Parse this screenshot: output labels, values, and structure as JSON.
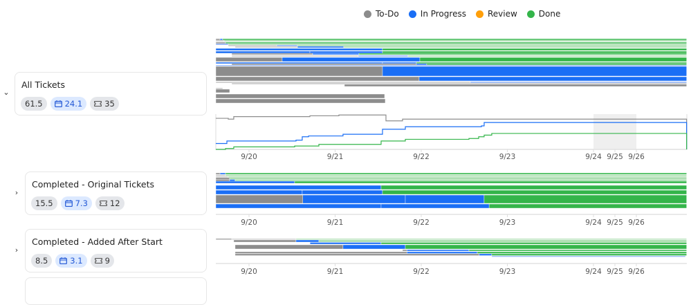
{
  "legend": [
    {
      "label": "To-Do",
      "color": "#8c8c8c"
    },
    {
      "label": "In Progress",
      "color": "#1a6ef5"
    },
    {
      "label": "Review",
      "color": "#ff9f0a"
    },
    {
      "label": "Done",
      "color": "#34b54a"
    }
  ],
  "colors": {
    "todo": "#8c8c8c",
    "todo-light": "#c6c6c6",
    "prog": "#1a6ef5",
    "prog-light": "#86acf3",
    "done": "#34b54a",
    "done-light": "#a3dba8",
    "weekend": "#efefef"
  },
  "groups": [
    {
      "title": "All Tickets",
      "expanded": true,
      "points": "61.5",
      "days": "24.1",
      "tickets": "35",
      "chevron": "chevron-down-icon"
    },
    {
      "title": "Completed - Original Tickets",
      "expanded": false,
      "points": "15.5",
      "days": "7.3",
      "tickets": "12",
      "chevron": "chevron-right-icon"
    },
    {
      "title": "Completed - Added After Start",
      "expanded": false,
      "points": "8.5",
      "days": "3.1",
      "tickets": "9",
      "chevron": "chevron-right-icon"
    }
  ],
  "chart_data": [
    {
      "type": "timeline",
      "group": "All Tickets",
      "xlim": [
        "9/19 14:45",
        "9/26 14:00"
      ],
      "ticks": [
        "9/20",
        "9/21",
        "9/22",
        "9/23",
        "9/24",
        "9/25",
        "9/26"
      ],
      "rows": [
        [
          [
            "todo",
            "9/19 14:45",
            "9/19 15:55"
          ],
          [
            "prog",
            "9/19 15:55",
            "9/19 16:40"
          ],
          [
            "done",
            "9/19 16:40",
            "9/26 14:00"
          ]
        ],
        [
          [
            "todo-light",
            "9/19 14:45",
            "9/19 17:03"
          ],
          [
            "done-light",
            "9/19 17:03",
            "9/26 14:00"
          ]
        ],
        [
          [
            "todo",
            "9/19 14:45",
            "9/19 17:27"
          ],
          [
            "done",
            "9/19 17:27",
            "9/26 14:00"
          ]
        ],
        [
          [
            "prog-light",
            "9/19 14:45",
            "9/19 18:13"
          ],
          [
            "done-light",
            "9/19 18:13",
            "9/26 14:00"
          ]
        ],
        [
          [
            "todo-light",
            "9/19 18:13",
            "9/20 07:43"
          ],
          [
            "prog-light",
            "9/20 07:43",
            "9/20 13:30"
          ],
          [
            "done-light",
            "9/20 13:30",
            "9/26 14:00"
          ]
        ],
        [
          [
            "todo-light",
            "9/19 20:08",
            "9/20 13:30"
          ],
          [
            "prog",
            "9/20 13:30",
            "9/21 02:24"
          ],
          [
            "done-light",
            "9/21 02:24",
            "9/26 14:00"
          ]
        ],
        [
          [
            "prog",
            "9/19 14:45",
            "9/21 13:12"
          ],
          [
            "done",
            "9/21 13:12",
            "9/26 14:00"
          ]
        ],
        [
          [
            "prog",
            "9/19 14:45",
            "9/20 16:58"
          ],
          [
            "prog",
            "9/20 16:58",
            "9/21 13:12"
          ],
          [
            "done",
            "9/21 13:12",
            "9/26 14:00"
          ]
        ],
        [
          [
            "todo",
            "9/19 19:11",
            "9/20 17:44"
          ],
          [
            "prog",
            "9/20 17:44",
            "9/21 06:39"
          ],
          [
            "done",
            "9/21 06:39",
            "9/26 14:00"
          ]
        ],
        [
          [
            "todo-light",
            "9/19 19:11",
            "9/21 06:27"
          ],
          [
            "prog-light",
            "9/21 06:27",
            "9/21 20:20"
          ],
          [
            "done-light",
            "9/21 20:20",
            "9/26 14:00"
          ]
        ],
        [
          [
            "todo",
            "9/19 14:45",
            "9/20 09:15"
          ],
          [
            "prog",
            "9/20 09:15",
            "9/21 23:37"
          ],
          [
            "done",
            "9/21 23:37",
            "9/26 14:00"
          ]
        ],
        [
          [
            "prog",
            "9/19 14:45",
            "9/21 13:12"
          ],
          [
            "prog",
            "9/21 13:12",
            "9/21 22:39"
          ],
          [
            "done",
            "9/21 22:39",
            "9/26 14:00"
          ]
        ],
        [
          [
            "todo",
            "9/19 19:11",
            "9/21 22:39"
          ],
          [
            "prog",
            "9/21 22:39",
            "9/22 01:32"
          ],
          [
            "done",
            "9/22 01:32",
            "9/26 14:00"
          ]
        ],
        [
          [
            "prog-light",
            "9/19 14:45",
            "9/26 14:00"
          ]
        ],
        [
          [
            "todo",
            "9/19 14:45",
            "9/21 13:12"
          ],
          [
            "prog",
            "9/21 13:12",
            "9/26 14:00"
          ]
        ],
        [
          [
            "todo",
            "9/19 14:45",
            "9/21 23:25"
          ],
          [
            "prog",
            "9/21 23:25",
            "9/26 14:00"
          ]
        ],
        [
          [
            "todo-light",
            "9/19 14:45",
            "9/22 13:41"
          ],
          [
            "prog-light",
            "9/22 13:41",
            "9/26 14:00"
          ]
        ],
        [
          [
            "todo-light",
            "9/19 19:11",
            "9/26 14:00"
          ]
        ],
        [
          [
            "todo",
            "9/21 02:36",
            "9/26 14:00"
          ]
        ],
        [
          [
            "todo-light",
            "9/19 14:45",
            "9/19 16:40"
          ]
        ],
        [
          [
            "todo",
            "9/19 14:45",
            "9/19 18:36"
          ]
        ],
        [
          [
            "todo",
            "9/19 14:45",
            "9/21 13:47"
          ]
        ],
        [
          [
            "todo",
            "9/19 14:45",
            "9/21 13:58"
          ]
        ]
      ]
    },
    {
      "type": "line",
      "group": "All Tickets",
      "xlim": [
        "9/19 14:45",
        "9/26 14:00"
      ],
      "ylim": [
        0,
        42
      ],
      "shaded_range": [
        "9/24",
        "9/26"
      ],
      "series": [
        {
          "color": "#8c8c8c",
          "points": [
            [
              "9/19 14:45",
              37
            ],
            [
              "9/19 18:13",
              36
            ],
            [
              "9/19 19:45",
              39
            ],
            [
              "9/20 16:58",
              40
            ],
            [
              "9/21 01:03",
              41
            ],
            [
              "9/21 13:47",
              41
            ],
            [
              "9/21 14:10",
              34
            ],
            [
              "9/21 18:47",
              36
            ],
            [
              "9/26 14:00",
              36
            ]
          ]
        },
        {
          "color": "#1a6ef5",
          "points": [
            [
              "9/19 14:45",
              7
            ],
            [
              "9/19 17:50",
              10
            ],
            [
              "9/20 13:06",
              11
            ],
            [
              "9/20 14:50",
              15
            ],
            [
              "9/20 16:35",
              16
            ],
            [
              "9/21 02:12",
              18
            ],
            [
              "9/21 13:12",
              24
            ],
            [
              "9/21 19:34",
              27
            ],
            [
              "9/22 16:46",
              28
            ],
            [
              "9/22 17:32",
              32
            ],
            [
              "9/26 14:00",
              32
            ]
          ]
        },
        {
          "color": "#34b54a",
          "points": [
            [
              "9/19 14:45",
              0
            ],
            [
              "9/19 17:27",
              1
            ],
            [
              "9/19 19:45",
              3
            ],
            [
              "9/20 12:43",
              4
            ],
            [
              "9/20 19:28",
              6
            ],
            [
              "9/21 12:49",
              10
            ],
            [
              "9/21 19:34",
              12
            ],
            [
              "9/22 13:18",
              13
            ],
            [
              "9/22 16:00",
              15
            ],
            [
              "9/22 17:32",
              17
            ],
            [
              "9/22 19:39",
              19
            ],
            [
              "9/26 14:00",
              19
            ]
          ]
        }
      ]
    },
    {
      "type": "timeline",
      "group": "Completed - Original Tickets",
      "xlim": [
        "9/19 14:45",
        "9/26 14:00"
      ],
      "ticks": [
        "9/20",
        "9/21",
        "9/22",
        "9/23",
        "9/24",
        "9/25",
        "9/26"
      ],
      "rows": [
        [
          [
            "todo",
            "9/19 14:45",
            "9/19 15:55"
          ],
          [
            "prog",
            "9/19 15:55",
            "9/19 17:27"
          ],
          [
            "done",
            "9/19 17:27",
            "9/26 14:00"
          ]
        ],
        [
          [
            "todo-light",
            "9/19 14:45",
            "9/19 17:27"
          ],
          [
            "done-light",
            "9/19 17:27",
            "9/26 14:00"
          ]
        ],
        [
          [
            "todo-light",
            "9/19 14:45",
            "9/19 18:13"
          ],
          [
            "done-light",
            "9/19 18:13",
            "9/26 14:00"
          ]
        ],
        [
          [
            "todo",
            "9/19 14:45",
            "9/19 18:36"
          ],
          [
            "done-light",
            "9/19 18:36",
            "9/26 14:00"
          ]
        ],
        [
          [
            "todo",
            "9/19 14:45",
            "9/19 18:36"
          ],
          [
            "prog",
            "9/19 18:36",
            "9/19 20:08"
          ],
          [
            "done-light",
            "9/19 20:08",
            "9/26 14:00"
          ]
        ],
        [
          [
            "prog",
            "9/19 14:45",
            "9/20 12:43"
          ],
          [
            "done",
            "9/20 12:43",
            "9/26 14:00"
          ]
        ],
        [
          [
            "prog",
            "9/19 14:45",
            "9/21 12:49"
          ],
          [
            "done",
            "9/21 12:49",
            "9/26 14:00"
          ]
        ],
        [
          [
            "prog",
            "9/19 14:45",
            "9/20 14:50"
          ],
          [
            "prog",
            "9/20 14:50",
            "9/21 13:12"
          ],
          [
            "done",
            "9/21 13:12",
            "9/26 14:00"
          ]
        ],
        [
          [
            "todo",
            "9/19 14:45",
            "9/20 15:00"
          ],
          [
            "prog",
            "9/20 15:00",
            "9/21 19:34"
          ],
          [
            "prog",
            "9/21 19:34",
            "9/22 17:32"
          ],
          [
            "done",
            "9/22 17:32",
            "9/26 14:00"
          ]
        ],
        [
          [
            "prog",
            "9/19 14:45",
            "9/21 12:49"
          ],
          [
            "prog",
            "9/21 12:49",
            "9/22 18:55"
          ],
          [
            "done",
            "9/22 18:55",
            "9/26 14:00"
          ]
        ]
      ]
    },
    {
      "type": "timeline",
      "group": "Completed - Added After Start",
      "xlim": [
        "9/19 14:45",
        "9/26 14:00"
      ],
      "ticks": [
        "9/20",
        "9/21",
        "9/22",
        "9/23",
        "9/24",
        "9/25",
        "9/26"
      ],
      "rows": [
        [
          [
            "todo",
            "9/19 14:45",
            "9/19 19:11"
          ],
          [
            "todo-light",
            "9/19 19:11",
            "9/20 13:06"
          ],
          [
            "done-light",
            "9/20 13:06",
            "9/26 14:00"
          ]
        ],
        [
          [
            "todo",
            "9/19 19:45",
            "9/20 13:06"
          ],
          [
            "prog",
            "9/20 13:06",
            "9/20 19:28"
          ],
          [
            "done-light",
            "9/20 19:28",
            "9/26 14:00"
          ]
        ],
        [
          [
            "prog",
            "9/20 17:00",
            "9/21 12:49"
          ],
          [
            "done",
            "9/21 12:49",
            "9/26 14:00"
          ]
        ],
        [
          [
            "todo",
            "9/19 20:08",
            "9/21 02:12"
          ],
          [
            "prog",
            "9/21 02:12",
            "9/21 19:34"
          ],
          [
            "done",
            "9/21 19:34",
            "9/26 14:00"
          ]
        ],
        [
          [
            "todo",
            "9/21 18:47",
            "9/21 20:00"
          ],
          [
            "prog",
            "9/21 20:00",
            "9/22 13:18"
          ],
          [
            "done",
            "9/22 13:18",
            "9/26 14:00"
          ]
        ],
        [
          [
            "todo",
            "9/19 20:08",
            "9/21 20:00"
          ],
          [
            "prog",
            "9/21 20:00",
            "9/22 15:37"
          ],
          [
            "done",
            "9/22 15:37",
            "9/26 14:00"
          ]
        ],
        [
          [
            "todo",
            "9/19 20:08",
            "9/22 16:10"
          ],
          [
            "prog",
            "9/22 16:10",
            "9/22 19:39"
          ],
          [
            "done",
            "9/22 19:39",
            "9/26 14:00"
          ]
        ],
        [
          [
            "prog-light",
            "9/22 19:39",
            "9/26 13:41"
          ]
        ]
      ]
    }
  ]
}
